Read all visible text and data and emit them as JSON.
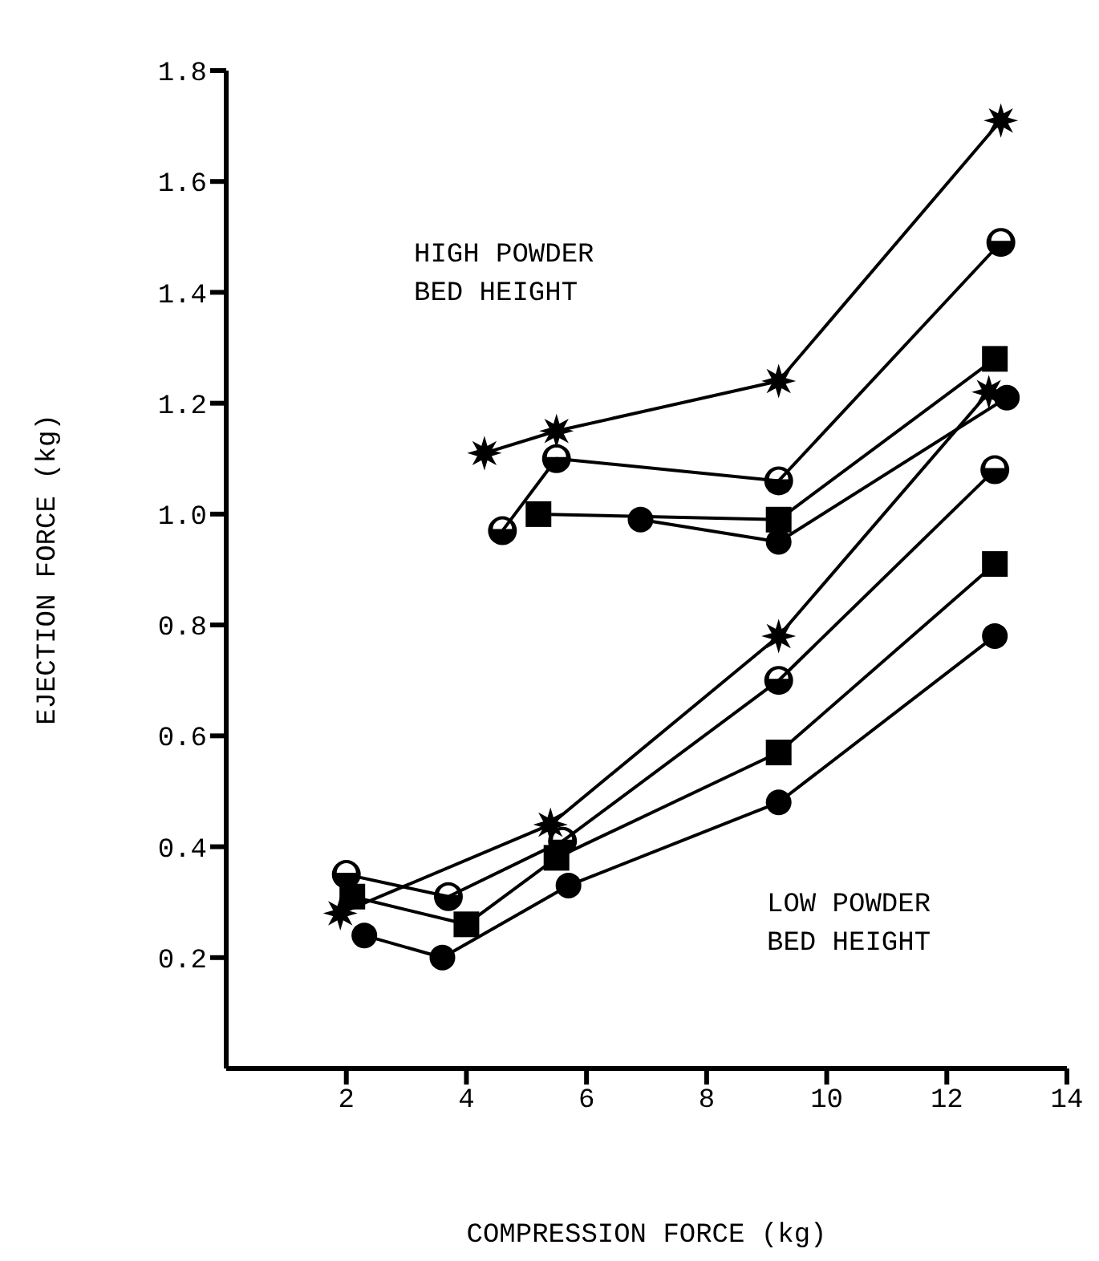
{
  "chart_data": {
    "type": "line",
    "xlabel": "COMPRESSION FORCE   (kg)",
    "ylabel": "EJECTION FORCE   (kg)",
    "xlim": [
      0,
      14
    ],
    "xticks": [
      2,
      4,
      6,
      8,
      10,
      12,
      14
    ],
    "ylim": [
      0,
      1.8
    ],
    "yticks": [
      0.2,
      0.4,
      0.6,
      0.8,
      {
        "value": 1,
        "label": "1.0"
      },
      1.2,
      1.4,
      1.6,
      1.8
    ],
    "line_style": "solid",
    "annotations": [
      "HIGH POWDER\nBED HEIGHT",
      "LOW POWDER\nBED HEIGHT"
    ],
    "series": [
      {
        "color": "#000000",
        "marker": "star",
        "x": [
          4.3,
          5.5,
          9.2,
          12.9
        ],
        "values": [
          1.11,
          1.15,
          1.24,
          1.71
        ]
      },
      {
        "color": "#000000",
        "marker": "half-circle",
        "x": [
          4.6,
          5.5,
          9.2,
          12.9
        ],
        "values": [
          0.97,
          1.1,
          1.06,
          1.49
        ]
      },
      {
        "color": "#000000",
        "marker": "square",
        "x": [
          5.2,
          9.2,
          12.8
        ],
        "values": [
          1.0,
          0.99,
          1.28
        ]
      },
      {
        "color": "#000000",
        "marker": "circle",
        "x": [
          6.9,
          9.2,
          13.0
        ],
        "values": [
          0.99,
          0.95,
          1.21
        ]
      },
      {
        "color": "#000000",
        "marker": "star",
        "x": [
          1.9,
          5.4,
          9.2,
          12.7
        ],
        "values": [
          0.28,
          0.44,
          0.78,
          1.22
        ]
      },
      {
        "color": "#000000",
        "marker": "half-circle",
        "x": [
          2.0,
          3.7,
          5.6,
          9.2,
          12.8
        ],
        "values": [
          0.35,
          0.31,
          0.41,
          0.7,
          1.08
        ]
      },
      {
        "color": "#000000",
        "marker": "square",
        "x": [
          2.1,
          4.0,
          5.5,
          9.2,
          12.8
        ],
        "values": [
          0.31,
          0.26,
          0.38,
          0.57,
          0.91
        ]
      },
      {
        "color": "#000000",
        "marker": "circle",
        "x": [
          2.3,
          3.6,
          5.7,
          9.2,
          12.8
        ],
        "values": [
          0.24,
          0.2,
          0.33,
          0.48,
          0.78
        ]
      }
    ]
  }
}
